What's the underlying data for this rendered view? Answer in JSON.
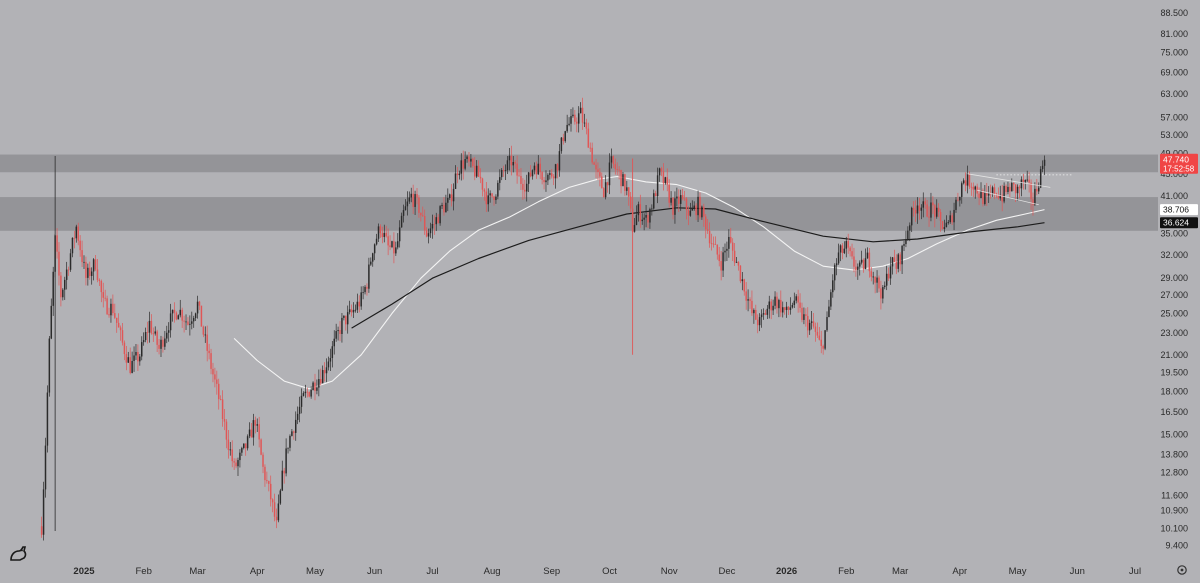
{
  "chart_data": {
    "type": "candlestick",
    "x_axis": {
      "tick_labels": [
        {
          "label": "2025",
          "date": "2025-01-01",
          "bold": true
        },
        {
          "label": "Feb",
          "date": "2025-02-01"
        },
        {
          "label": "Mar",
          "date": "2025-03-01"
        },
        {
          "label": "Apr",
          "date": "2025-04-01"
        },
        {
          "label": "May",
          "date": "2025-05-01"
        },
        {
          "label": "Jun",
          "date": "2025-06-01"
        },
        {
          "label": "Jul",
          "date": "2025-07-01"
        },
        {
          "label": "Aug",
          "date": "2025-08-01"
        },
        {
          "label": "Sep",
          "date": "2025-09-01"
        },
        {
          "label": "Oct",
          "date": "2025-10-01"
        },
        {
          "label": "Nov",
          "date": "2025-11-01"
        },
        {
          "label": "Dec",
          "date": "2025-12-01"
        },
        {
          "label": "2026",
          "date": "2026-01-01",
          "bold": true
        },
        {
          "label": "Feb",
          "date": "2026-02-01"
        },
        {
          "label": "Mar",
          "date": "2026-03-01"
        },
        {
          "label": "Apr",
          "date": "2026-04-01"
        },
        {
          "label": "May",
          "date": "2026-05-01"
        },
        {
          "label": "Jun",
          "date": "2026-06-01"
        },
        {
          "label": "Jul",
          "date": "2026-07-01"
        }
      ]
    },
    "y_axis": {
      "scale": "log",
      "range": [
        9.0,
        92.0
      ],
      "position": "right",
      "tick_labels": [
        "88.500",
        "81.000",
        "75.000",
        "69.000",
        "63.000",
        "57.000",
        "53.000",
        "49.000",
        "45.000",
        "41.000",
        "35.000",
        "32.000",
        "29.000",
        "27.000",
        "25.000",
        "23.000",
        "21.000",
        "19.500",
        "18.000",
        "16.500",
        "15.000",
        "13.800",
        "12.800",
        "11.600",
        "10.900",
        "10.100",
        "9.400"
      ]
    },
    "zones": [
      {
        "name": "resistance-zone",
        "low": 45.3,
        "high": 48.8
      },
      {
        "name": "support-zone",
        "low": 35.4,
        "high": 40.8
      }
    ],
    "price_labels": [
      {
        "value": 47.74,
        "text": "47.740",
        "subtext": "17:52:58",
        "color": "#f04545",
        "text_color": "#ffffff"
      },
      {
        "value": 38.706,
        "text": "38.706",
        "color": "#ffffff",
        "text_color": "#111111"
      },
      {
        "value": 36.624,
        "text": "36.624",
        "color": "#111111",
        "text_color": "#ffffff"
      }
    ],
    "price_path": [
      [
        "2024-12-10",
        10.2
      ],
      [
        "2024-12-12",
        14.5
      ],
      [
        "2024-12-14",
        22
      ],
      [
        "2024-12-17",
        34
      ],
      [
        "2024-12-20",
        27
      ],
      [
        "2024-12-24",
        31
      ],
      [
        "2024-12-28",
        36
      ],
      [
        "2025-01-02",
        29
      ],
      [
        "2025-01-07",
        31
      ],
      [
        "2025-01-11",
        26
      ],
      [
        "2025-01-16",
        25.5
      ],
      [
        "2025-01-21",
        22
      ],
      [
        "2025-01-25",
        20
      ],
      [
        "2025-01-30",
        21
      ],
      [
        "2025-02-04",
        24
      ],
      [
        "2025-02-09",
        21.5
      ],
      [
        "2025-02-14",
        24
      ],
      [
        "2025-02-19",
        25.5
      ],
      [
        "2025-02-24",
        24
      ],
      [
        "2025-03-01",
        26
      ],
      [
        "2025-03-04",
        23
      ],
      [
        "2025-03-08",
        20
      ],
      [
        "2025-03-12",
        17.5
      ],
      [
        "2025-03-16",
        15
      ],
      [
        "2025-03-20",
        13
      ],
      [
        "2025-03-23",
        13.6
      ],
      [
        "2025-03-27",
        14.5
      ],
      [
        "2025-03-31",
        16
      ],
      [
        "2025-04-04",
        13
      ],
      [
        "2025-04-08",
        11.5
      ],
      [
        "2025-04-11",
        10.2
      ],
      [
        "2025-04-14",
        12.5
      ],
      [
        "2025-04-17",
        14.5
      ],
      [
        "2025-04-21",
        16
      ],
      [
        "2025-04-25",
        17.5
      ],
      [
        "2025-04-30",
        18.5
      ],
      [
        "2025-05-05",
        19.5
      ],
      [
        "2025-05-10",
        21.5
      ],
      [
        "2025-05-15",
        24
      ],
      [
        "2025-05-20",
        25
      ],
      [
        "2025-05-25",
        26.5
      ],
      [
        "2025-05-28",
        28.5
      ],
      [
        "2025-05-31",
        33
      ],
      [
        "2025-06-04",
        36
      ],
      [
        "2025-06-08",
        33
      ],
      [
        "2025-06-12",
        32.5
      ],
      [
        "2025-06-16",
        38
      ],
      [
        "2025-06-20",
        41
      ],
      [
        "2025-06-24",
        39
      ],
      [
        "2025-06-28",
        35
      ],
      [
        "2025-07-02",
        36.5
      ],
      [
        "2025-07-06",
        39
      ],
      [
        "2025-07-10",
        40
      ],
      [
        "2025-07-14",
        46
      ],
      [
        "2025-07-18",
        47.5
      ],
      [
        "2025-07-22",
        46
      ],
      [
        "2025-07-26",
        44
      ],
      [
        "2025-07-30",
        40
      ],
      [
        "2025-08-03",
        42
      ],
      [
        "2025-08-07",
        45.5
      ],
      [
        "2025-08-11",
        47.5
      ],
      [
        "2025-08-15",
        44
      ],
      [
        "2025-08-19",
        43
      ],
      [
        "2025-08-23",
        47
      ],
      [
        "2025-08-27",
        45
      ],
      [
        "2025-08-31",
        44.5
      ],
      [
        "2025-09-04",
        47
      ],
      [
        "2025-09-08",
        55
      ],
      [
        "2025-09-12",
        56
      ],
      [
        "2025-09-16",
        58
      ],
      [
        "2025-09-20",
        52
      ],
      [
        "2025-09-24",
        45
      ],
      [
        "2025-09-28",
        42
      ],
      [
        "2025-10-02",
        47
      ],
      [
        "2025-10-06",
        45
      ],
      [
        "2025-10-10",
        42
      ],
      [
        "2025-10-13",
        36
      ],
      [
        "2025-10-16",
        38.5
      ],
      [
        "2025-10-20",
        37
      ],
      [
        "2025-10-24",
        40.5
      ],
      [
        "2025-10-27",
        45
      ],
      [
        "2025-10-30",
        43
      ],
      [
        "2025-11-03",
        39
      ],
      [
        "2025-11-07",
        40.5
      ],
      [
        "2025-11-12",
        38
      ],
      [
        "2025-11-16",
        39.5
      ],
      [
        "2025-11-20",
        36.5
      ],
      [
        "2025-11-24",
        33
      ],
      [
        "2025-11-28",
        31
      ],
      [
        "2025-12-02",
        34
      ],
      [
        "2025-12-06",
        31
      ],
      [
        "2025-12-10",
        28
      ],
      [
        "2025-12-14",
        25
      ],
      [
        "2025-12-18",
        24
      ],
      [
        "2025-12-22",
        25.5
      ],
      [
        "2025-12-26",
        26.5
      ],
      [
        "2026-01-01",
        25
      ],
      [
        "2026-01-05",
        26.5
      ],
      [
        "2026-01-08",
        25
      ],
      [
        "2026-01-12",
        24
      ],
      [
        "2026-01-15",
        23.5
      ],
      [
        "2026-01-19",
        21.5
      ],
      [
        "2026-01-22",
        24
      ],
      [
        "2026-01-25",
        29
      ],
      [
        "2026-01-28",
        32
      ],
      [
        "2026-02-01",
        33
      ],
      [
        "2026-02-04",
        31
      ],
      [
        "2026-02-08",
        30
      ],
      [
        "2026-02-12",
        31.5
      ],
      [
        "2026-02-16",
        29
      ],
      [
        "2026-02-20",
        27
      ],
      [
        "2026-02-24",
        31
      ],
      [
        "2026-02-27",
        30.5
      ],
      [
        "2026-03-02",
        32.5
      ],
      [
        "2026-03-06",
        37
      ],
      [
        "2026-03-10",
        40
      ],
      [
        "2026-03-14",
        38.5
      ],
      [
        "2026-03-18",
        39
      ],
      [
        "2026-03-22",
        36.5
      ],
      [
        "2026-03-26",
        36
      ],
      [
        "2026-03-30",
        40
      ],
      [
        "2026-04-03",
        44
      ],
      [
        "2026-04-07",
        43.5
      ],
      [
        "2026-04-11",
        41.5
      ],
      [
        "2026-04-15",
        40
      ],
      [
        "2026-04-19",
        42
      ],
      [
        "2026-04-23",
        41
      ],
      [
        "2026-04-27",
        42.5
      ],
      [
        "2026-05-01",
        42
      ],
      [
        "2026-05-04",
        43.5
      ],
      [
        "2026-05-07",
        42
      ],
      [
        "2026-05-09",
        40
      ],
      [
        "2026-05-12",
        44
      ],
      [
        "2026-05-15",
        47.74
      ]
    ],
    "white_ma": [
      [
        "2025-03-20",
        22.5
      ],
      [
        "2025-04-01",
        20.5
      ],
      [
        "2025-04-15",
        18.8
      ],
      [
        "2025-04-28",
        18.2
      ],
      [
        "2025-05-10",
        18.8
      ],
      [
        "2025-05-25",
        21
      ],
      [
        "2025-06-10",
        25
      ],
      [
        "2025-06-25",
        29
      ],
      [
        "2025-07-10",
        32.5
      ],
      [
        "2025-07-25",
        35.5
      ],
      [
        "2025-08-10",
        37.5
      ],
      [
        "2025-08-25",
        40
      ],
      [
        "2025-09-10",
        42.5
      ],
      [
        "2025-09-25",
        44
      ],
      [
        "2025-10-05",
        44.5
      ],
      [
        "2025-10-20",
        43.5
      ],
      [
        "2025-11-05",
        43
      ],
      [
        "2025-11-20",
        41.5
      ],
      [
        "2025-12-05",
        39
      ],
      [
        "2025-12-20",
        36
      ],
      [
        "2026-01-05",
        32.5
      ],
      [
        "2026-01-20",
        30.5
      ],
      [
        "2026-02-05",
        30
      ],
      [
        "2026-02-20",
        30.5
      ],
      [
        "2026-03-05",
        31.5
      ],
      [
        "2026-03-20",
        33.5
      ],
      [
        "2026-04-05",
        35.5
      ],
      [
        "2026-04-20",
        37
      ],
      [
        "2026-05-05",
        38
      ],
      [
        "2026-05-15",
        38.706
      ]
    ],
    "black_ma": [
      [
        "2025-05-20",
        23.5
      ],
      [
        "2025-06-10",
        26
      ],
      [
        "2025-07-01",
        29
      ],
      [
        "2025-07-25",
        31.5
      ],
      [
        "2025-08-20",
        34
      ],
      [
        "2025-09-15",
        36
      ],
      [
        "2025-10-10",
        38
      ],
      [
        "2025-11-05",
        39
      ],
      [
        "2025-11-25",
        38.8
      ],
      [
        "2025-12-20",
        36.8
      ],
      [
        "2026-01-20",
        34.6
      ],
      [
        "2026-02-15",
        33.8
      ],
      [
        "2026-03-10",
        34.2
      ],
      [
        "2026-04-05",
        35.2
      ],
      [
        "2026-05-01",
        36
      ],
      [
        "2026-05-15",
        36.624
      ]
    ],
    "spike_wick": {
      "date": "2025-10-13",
      "high": 48,
      "low": 21
    },
    "trendlines": [
      {
        "from": [
          "2026-04-05",
          45.0
        ],
        "to": [
          "2026-05-18",
          42.5
        ]
      },
      {
        "from": [
          "2026-04-10",
          42.0
        ],
        "to": [
          "2026-05-12",
          39.5
        ]
      }
    ],
    "dotted_levels": [
      {
        "from": "2026-04-20",
        "to": "2026-05-30",
        "value": 44.8
      }
    ],
    "candle_colors": {
      "up": "#2b2b2b",
      "down": "#e05656"
    }
  }
}
